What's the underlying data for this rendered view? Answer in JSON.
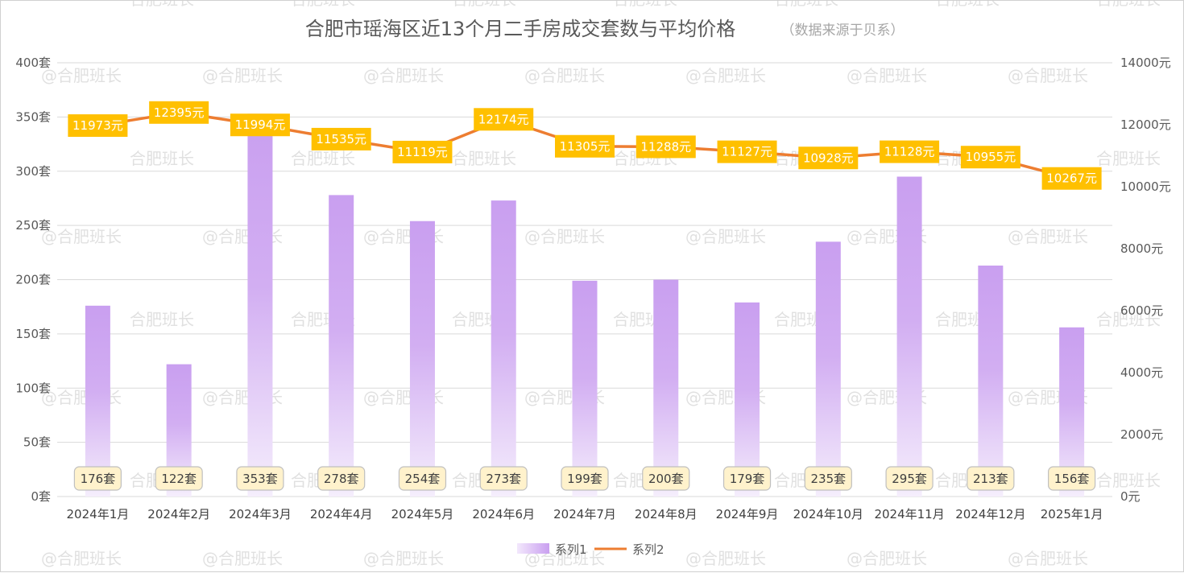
{
  "chart_data": {
    "type": "bar+line",
    "title": "合肥市瑶海区近13个月二手房成交套数与平均价格",
    "subtitle": "（数据来源于贝系）",
    "categories": [
      "2024年1月",
      "2024年2月",
      "2024年3月",
      "2024年4月",
      "2024年5月",
      "2024年6月",
      "2024年7月",
      "2024年8月",
      "2024年9月",
      "2024年10月",
      "2024年11月",
      "2024年12月",
      "2025年1月"
    ],
    "series": [
      {
        "name": "系列1",
        "type": "bar",
        "axis": "left",
        "values": [
          176,
          122,
          353,
          278,
          254,
          273,
          199,
          200,
          179,
          235,
          295,
          213,
          156
        ],
        "labels": [
          "176套",
          "122套",
          "353套",
          "278套",
          "254套",
          "273套",
          "199套",
          "200套",
          "179套",
          "235套",
          "295套",
          "213套",
          "156套"
        ],
        "color_top": "#c99ff0",
        "color_bottom": "#f3e8fc"
      },
      {
        "name": "系列2",
        "type": "line",
        "axis": "right",
        "values": [
          11973,
          12395,
          11994,
          11535,
          11119,
          12174,
          11305,
          11288,
          11127,
          10928,
          11128,
          10955,
          10267
        ],
        "labels": [
          "11973元",
          "12395元",
          "11994元",
          "11535元",
          "11119元",
          "12174元",
          "11305元",
          "11288元",
          "11127元",
          "10928元",
          "11128元",
          "10955元",
          "10267元"
        ],
        "color": "#ed7d31",
        "label_bg": "#ffc000"
      }
    ],
    "y_left": {
      "ticks": [
        0,
        50,
        100,
        150,
        200,
        250,
        300,
        350,
        400
      ],
      "tick_labels": [
        "0套",
        "50套",
        "100套",
        "150套",
        "200套",
        "250套",
        "300套",
        "350套",
        "400套"
      ],
      "ylim": [
        0,
        400
      ]
    },
    "y_right": {
      "ticks": [
        0,
        2000,
        4000,
        6000,
        8000,
        10000,
        12000,
        14000
      ],
      "tick_labels": [
        "0元",
        "2000元",
        "4000元",
        "6000元",
        "8000元",
        "10000元",
        "12000元",
        "14000元"
      ],
      "ylim": [
        0,
        14000
      ]
    },
    "grid": true,
    "legend": {
      "position": "bottom",
      "entries": [
        "系列1",
        "系列2"
      ]
    },
    "bar_label_bg": "#fff2cc",
    "bar_label_border": "#bfbfbf",
    "gridline_color": "#d9d9d9"
  },
  "watermark": "@合肥班长",
  "watermark_alt": "合肥班长"
}
